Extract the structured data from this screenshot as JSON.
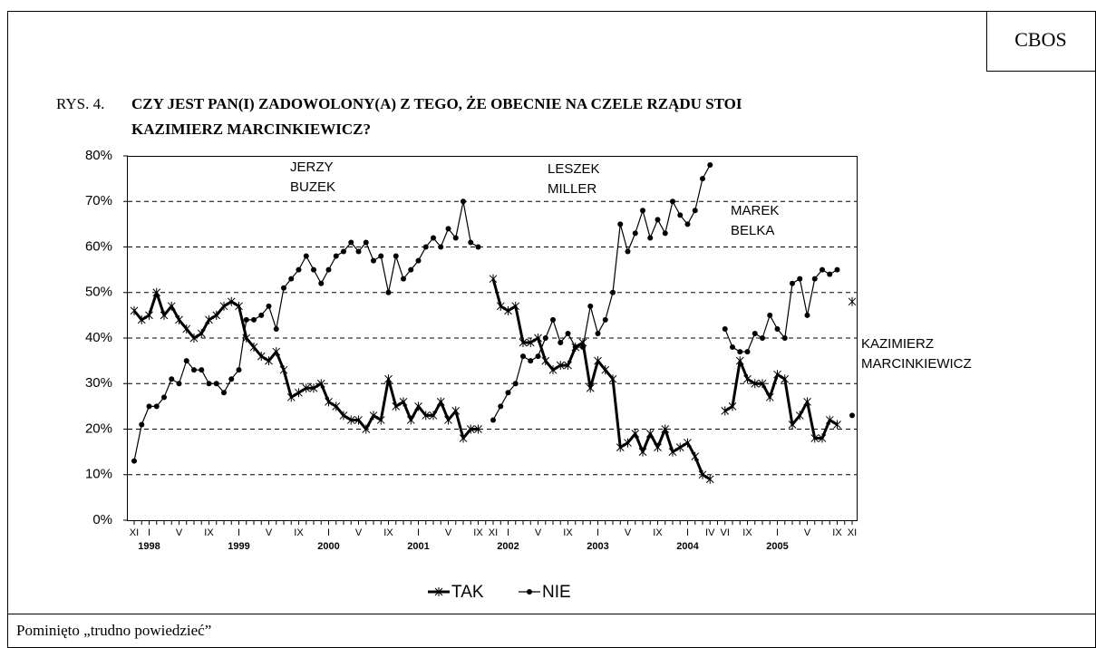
{
  "brand": "CBOS",
  "footer": "Pominięto „trudno powiedzieć”",
  "chart_data": {
    "type": "line",
    "title_prefix": "RYS. 4.",
    "title": [
      "CZY JEST PAN(I) ZADOWOLONY(A) Z TEGO, ŻE OBECNIE NA CZELE RZĄDU STOI",
      "KAZIMIERZ MARCINKIEWICZ?"
    ],
    "annotations": [
      [
        "JERZY",
        "BUZEK"
      ],
      [
        "LESZEK",
        "MILLER"
      ],
      [
        "MAREK",
        "BELKA"
      ],
      [
        "KAZIMIERZ",
        "MARCINKIEWICZ"
      ]
    ],
    "categories": [
      "XI",
      null,
      "I",
      null,
      null,
      null,
      "V",
      null,
      null,
      null,
      "IX",
      null,
      null,
      null,
      "I",
      null,
      null,
      null,
      "V",
      null,
      null,
      null,
      "IX",
      null,
      null,
      null,
      "I",
      null,
      null,
      null,
      "V",
      null,
      null,
      null,
      "IX",
      null,
      null,
      null,
      "I",
      null,
      null,
      null,
      "V",
      null,
      null,
      null,
      "IX",
      null,
      "XI",
      null,
      "I",
      null,
      null,
      null,
      "V",
      null,
      null,
      null,
      "IX",
      null,
      null,
      null,
      "I",
      null,
      null,
      null,
      "V",
      null,
      null,
      null,
      "IX",
      null,
      null,
      null,
      "I",
      null,
      null,
      "IV",
      null,
      "VI",
      null,
      null,
      "IX",
      null,
      null,
      null,
      "I",
      null,
      null,
      null,
      "V",
      null,
      null,
      null,
      "IX",
      null,
      "XI"
    ],
    "years": [
      "1998",
      "1999",
      "2000",
      "2001",
      "2002",
      "2003",
      "2004",
      "2005"
    ],
    "ylim": [
      0,
      80
    ],
    "yticks": [
      {
        "value": 0,
        "label": "0%"
      },
      {
        "value": 10,
        "label": "10%"
      },
      {
        "value": 20,
        "label": "20%"
      },
      {
        "value": 30,
        "label": "30%"
      },
      {
        "value": 40,
        "label": "40%"
      },
      {
        "value": 50,
        "label": "50%"
      },
      {
        "value": 60,
        "label": "60%"
      },
      {
        "value": 70,
        "label": "70%"
      },
      {
        "value": 80,
        "label": "80%"
      }
    ],
    "grid": true,
    "legend": "bottom",
    "series": [
      {
        "name": "TAK",
        "color": "#000000",
        "values": [
          46,
          44,
          45,
          50,
          45,
          47,
          44,
          42,
          40,
          41,
          44,
          45,
          47,
          48,
          47,
          40,
          38,
          36,
          35,
          37,
          33,
          27,
          28,
          29,
          29,
          30,
          26,
          25,
          23,
          22,
          22,
          20,
          23,
          22,
          31,
          25,
          26,
          22,
          25,
          23,
          23,
          26,
          22,
          24,
          18,
          20,
          20,
          null,
          53,
          47,
          46,
          47,
          39,
          39,
          40,
          35,
          33,
          34,
          34,
          38,
          39,
          29,
          35,
          33,
          31,
          16,
          17,
          19,
          15,
          19,
          16,
          20,
          15,
          16,
          17,
          14,
          10,
          9,
          null,
          24,
          25,
          35,
          31,
          30,
          30,
          27,
          32,
          31,
          21,
          23,
          26,
          18,
          18,
          22,
          21,
          null,
          48
        ]
      },
      {
        "name": "NIE",
        "color": "#000000",
        "values": [
          13,
          21,
          25,
          25,
          27,
          31,
          30,
          35,
          33,
          33,
          30,
          30,
          28,
          31,
          33,
          44,
          44,
          45,
          47,
          42,
          51,
          53,
          55,
          58,
          55,
          52,
          55,
          58,
          59,
          61,
          59,
          61,
          57,
          58,
          50,
          58,
          53,
          55,
          57,
          60,
          62,
          60,
          64,
          62,
          70,
          61,
          60,
          null,
          22,
          25,
          28,
          30,
          36,
          35,
          36,
          40,
          44,
          39,
          41,
          38,
          38,
          47,
          41,
          44,
          50,
          65,
          59,
          63,
          68,
          62,
          66,
          63,
          70,
          67,
          65,
          68,
          75,
          78,
          null,
          42,
          38,
          37,
          37,
          41,
          40,
          45,
          42,
          40,
          52,
          53,
          45,
          53,
          55,
          54,
          55,
          null,
          23
        ]
      }
    ]
  }
}
